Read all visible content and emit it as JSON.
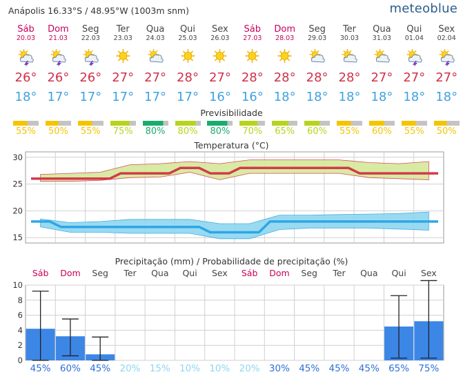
{
  "header": {
    "location": "Anápolis  16.33°S / 48.95°W (1003m snm)",
    "brand": "meteoblue"
  },
  "days": [
    {
      "name": "Sáb",
      "date": "20.03",
      "weekend": true,
      "icon": "sun-storm-icon"
    },
    {
      "name": "Dom",
      "date": "21.03",
      "weekend": true,
      "icon": "sun-storm-icon"
    },
    {
      "name": "Seg",
      "date": "22.03",
      "weekend": false,
      "icon": "sun-storm-icon"
    },
    {
      "name": "Ter",
      "date": "23.03",
      "weekend": false,
      "icon": "sun-icon"
    },
    {
      "name": "Qua",
      "date": "24.03",
      "weekend": false,
      "icon": "sun-cloud-icon"
    },
    {
      "name": "Qui",
      "date": "25.03",
      "weekend": false,
      "icon": "sun-icon"
    },
    {
      "name": "Sex",
      "date": "26.03",
      "weekend": false,
      "icon": "sun-icon"
    },
    {
      "name": "Sáb",
      "date": "27.03",
      "weekend": true,
      "icon": "sun-icon"
    },
    {
      "name": "Dom",
      "date": "28.03",
      "weekend": true,
      "icon": "sun-icon"
    },
    {
      "name": "Seg",
      "date": "29.03",
      "weekend": false,
      "icon": "sun-cloud-icon"
    },
    {
      "name": "Ter",
      "date": "30.03",
      "weekend": false,
      "icon": "sun-cloud-icon"
    },
    {
      "name": "Qua",
      "date": "31.03",
      "weekend": false,
      "icon": "sun-cloud-icon"
    },
    {
      "name": "Qui",
      "date": "01.04",
      "weekend": false,
      "icon": "sun-storm-icon"
    },
    {
      "name": "Sex",
      "date": "02.04",
      "weekend": false,
      "icon": "sun-storm-icon"
    }
  ],
  "tmax": [
    "26°",
    "26°",
    "26°",
    "27°",
    "27°",
    "28°",
    "27°",
    "28°",
    "28°",
    "28°",
    "28°",
    "27°",
    "27°",
    "27°"
  ],
  "tmin": [
    "18°",
    "17°",
    "17°",
    "17°",
    "17°",
    "17°",
    "16°",
    "16°",
    "18°",
    "18°",
    "18°",
    "18°",
    "18°",
    "18°"
  ],
  "predictability": {
    "title": "Previsibilidade",
    "values": [
      "55%",
      "50%",
      "55%",
      "75%",
      "80%",
      "80%",
      "80%",
      "70%",
      "65%",
      "60%",
      "55%",
      "60%",
      "55%",
      "50%"
    ],
    "fractions": [
      0.55,
      0.5,
      0.55,
      0.75,
      0.8,
      0.8,
      0.8,
      0.7,
      0.65,
      0.6,
      0.55,
      0.6,
      0.55,
      0.5
    ],
    "colors": [
      "#f5c400",
      "#f5c400",
      "#f5c400",
      "#b5d51b",
      "#1aac6e",
      "#b5d51b",
      "#1aac6e",
      "#b5d51b",
      "#b5d51b",
      "#b5d51b",
      "#f5c400",
      "#f5c400",
      "#f5c400",
      "#f5c400"
    ]
  },
  "chart_data": [
    {
      "type": "line",
      "title": "Temperatura (°C)",
      "categories": [
        "20.03",
        "21.03",
        "22.03",
        "23.03",
        "24.03",
        "25.03",
        "26.03",
        "27.03",
        "28.03",
        "29.03",
        "30.03",
        "31.03",
        "01.04",
        "02.04"
      ],
      "ylim": [
        14,
        31
      ],
      "yticks": [
        "30",
        "25",
        "20",
        "15"
      ],
      "series": [
        {
          "color": "#d33a4a",
          "values": [
            26,
            26,
            26,
            27,
            27,
            28,
            27,
            28,
            28,
            28,
            28,
            27,
            27,
            27
          ],
          "band_low": [
            25.5,
            25.5,
            25.7,
            26.2,
            26.3,
            27.2,
            25.8,
            27.0,
            27.0,
            27.0,
            27.0,
            26.2,
            26.0,
            25.8
          ],
          "band_high": [
            26.8,
            27.0,
            27.2,
            28.6,
            28.8,
            29.2,
            28.8,
            29.5,
            29.5,
            29.5,
            29.5,
            29.0,
            28.8,
            29.2
          ],
          "band_color": "#d4e89a"
        },
        {
          "color": "#2ea6e6",
          "values": [
            18,
            17,
            17,
            17,
            17,
            17,
            16,
            16,
            18,
            18,
            18,
            18,
            18,
            18
          ],
          "band_low": [
            17.0,
            16.0,
            16.0,
            15.8,
            15.8,
            15.8,
            14.8,
            14.8,
            16.5,
            16.8,
            16.8,
            16.8,
            16.6,
            16.4
          ],
          "band_high": [
            18.5,
            17.8,
            18.0,
            18.4,
            18.4,
            18.4,
            17.6,
            17.6,
            19.2,
            19.2,
            19.3,
            19.4,
            19.5,
            19.8
          ],
          "band_color": "#8fd6f0"
        }
      ]
    },
    {
      "type": "bar",
      "title": "Precipitação (mm) / Probabilidade de precipitação (%)",
      "categories": [
        "Sáb",
        "Dom",
        "Seg",
        "Ter",
        "Qua",
        "Qui",
        "Sex",
        "Sáb",
        "Dom",
        "Seg",
        "Ter",
        "Qua",
        "Qui",
        "Sex"
      ],
      "weekend": [
        true,
        true,
        false,
        false,
        false,
        false,
        false,
        true,
        true,
        false,
        false,
        false,
        false,
        false
      ],
      "ylim": [
        0,
        10
      ],
      "yticks": [
        "10",
        "8",
        "6",
        "4",
        "2",
        "0"
      ],
      "values": [
        4.2,
        3.2,
        0.8,
        0,
        0,
        0,
        0,
        0,
        0,
        0,
        0,
        0,
        4.5,
        5.2
      ],
      "err_low": [
        0,
        0.6,
        0,
        null,
        null,
        null,
        null,
        null,
        null,
        null,
        null,
        null,
        0.3,
        0.3
      ],
      "err_high": [
        9.2,
        5.5,
        3.1,
        null,
        null,
        null,
        null,
        null,
        null,
        null,
        null,
        null,
        8.6,
        10.6
      ],
      "probability": [
        "45%",
        "60%",
        "45%",
        "20%",
        "15%",
        "10%",
        "10%",
        "20%",
        "30%",
        "45%",
        "45%",
        "45%",
        "65%",
        "75%"
      ],
      "probability_colors": [
        "#2f6fd6",
        "#2f6fd6",
        "#2f6fd6",
        "#8fd6f0",
        "#8fd6f0",
        "#8fd6f0",
        "#8fd6f0",
        "#8fd6f0",
        "#2f6fd6",
        "#2f6fd6",
        "#2f6fd6",
        "#2f6fd6",
        "#2f6fd6",
        "#2f6fd6"
      ],
      "bar_color": "#3c86e6"
    }
  ]
}
